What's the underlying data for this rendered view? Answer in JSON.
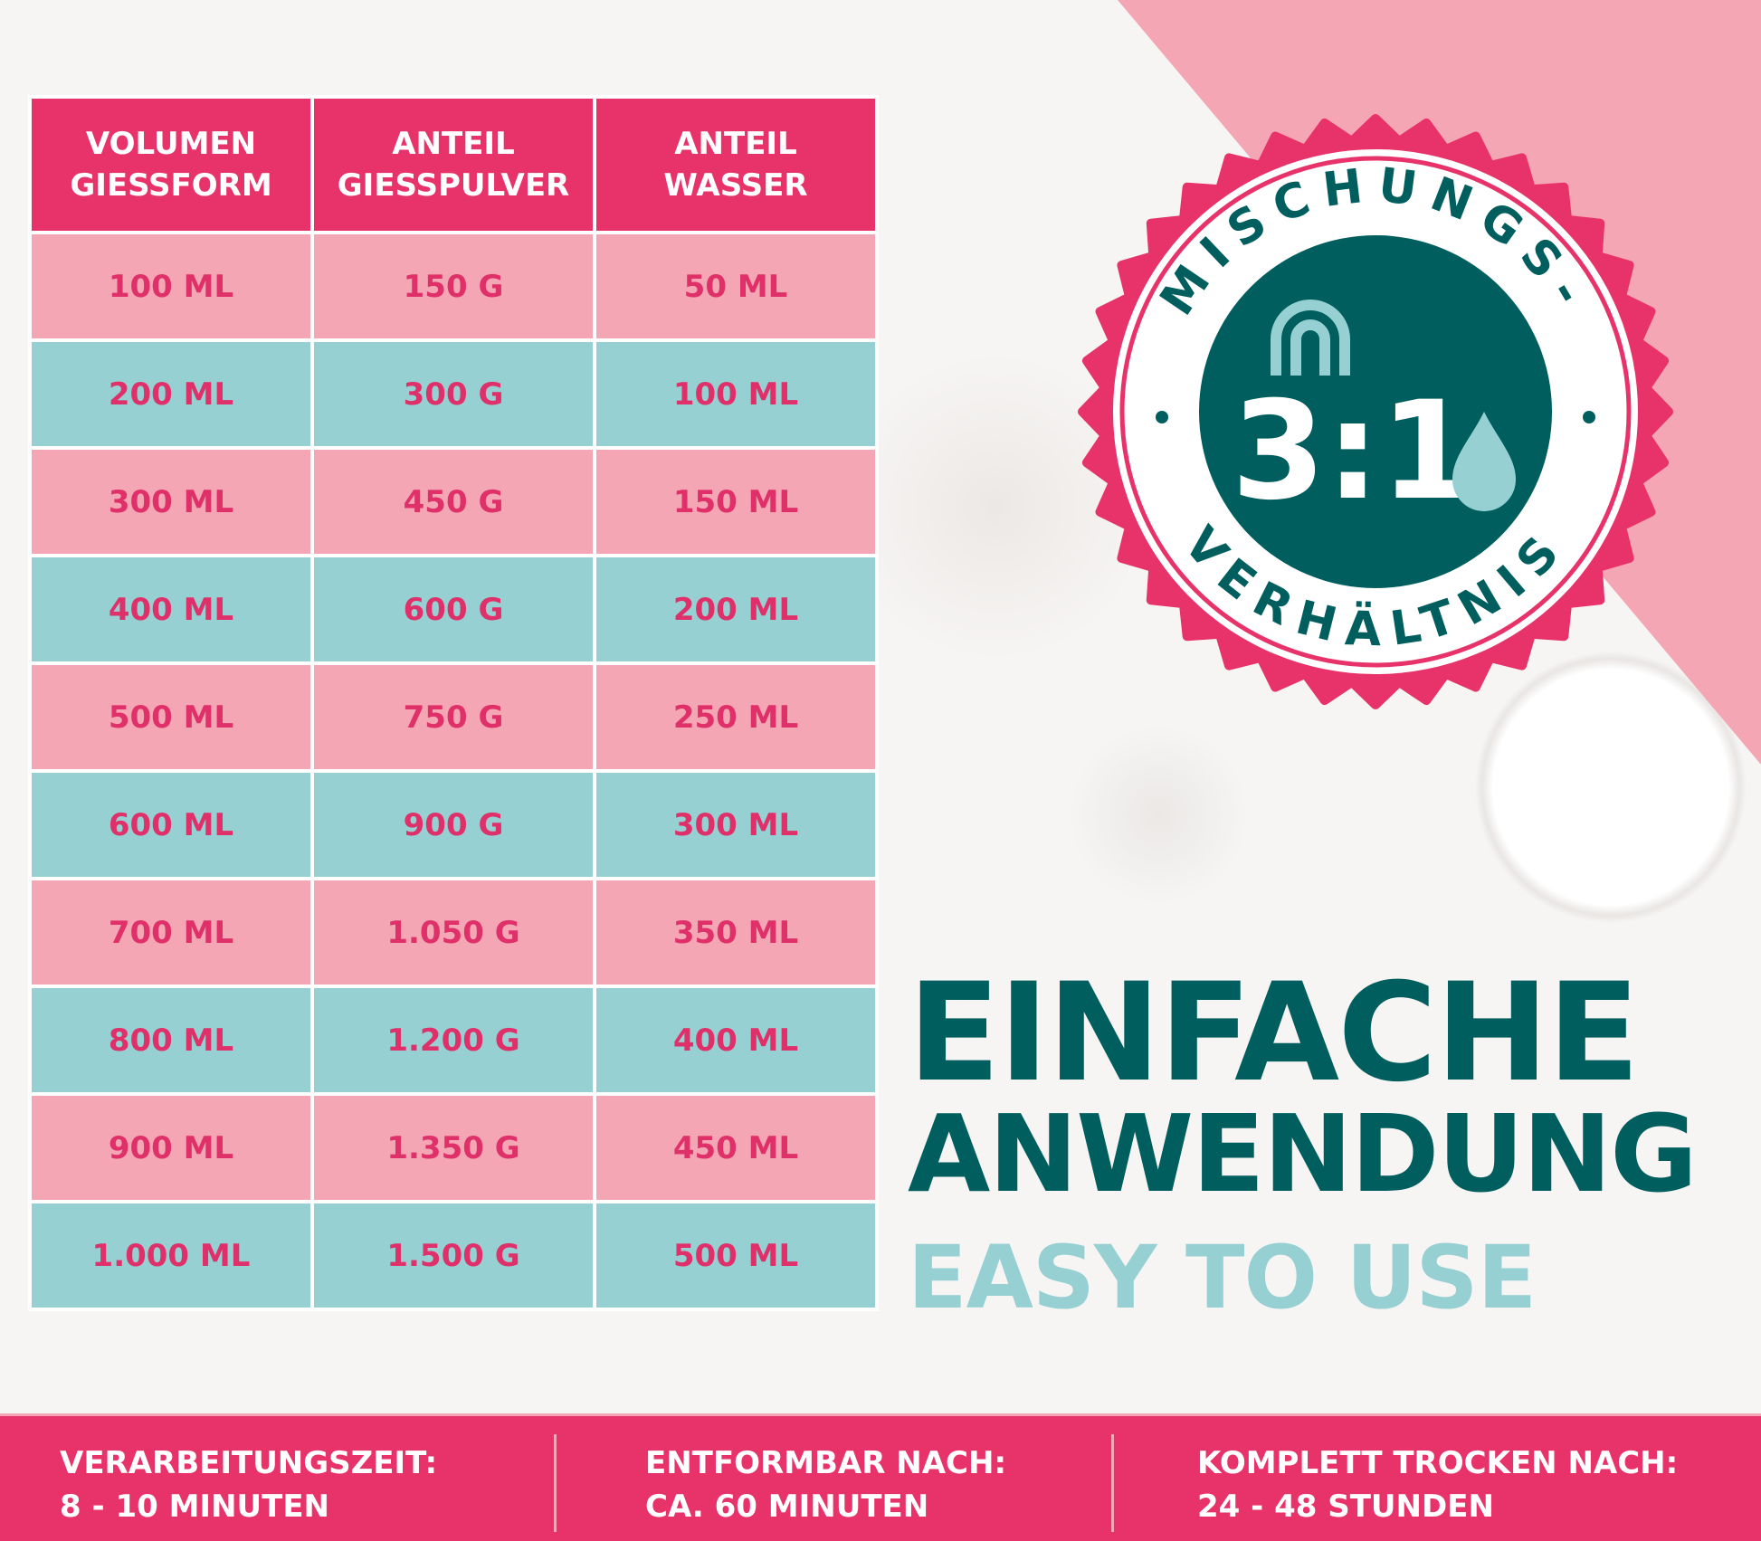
{
  "colors": {
    "pink": "#e8336a",
    "light_pink": "#f4a6b4",
    "teal": "#96d0d2",
    "dark_teal": "#005f5e"
  },
  "table": {
    "headers": [
      [
        "VOLUMEN",
        "GIESSFORM"
      ],
      [
        "ANTEIL",
        "GIESSPULVER"
      ],
      [
        "ANTEIL",
        "WASSER"
      ]
    ],
    "rows": [
      [
        "100 ML",
        "150 G",
        "50 ML"
      ],
      [
        "200 ML",
        "300 G",
        "100 ML"
      ],
      [
        "300 ML",
        "450 G",
        "150 ML"
      ],
      [
        "400 ML",
        "600 G",
        "200 ML"
      ],
      [
        "500 ML",
        "750 G",
        "250 ML"
      ],
      [
        "600 ML",
        "900 G",
        "300 ML"
      ],
      [
        "700 ML",
        "1.050 G",
        "350 ML"
      ],
      [
        "800 ML",
        "1.200 G",
        "400 ML"
      ],
      [
        "900 ML",
        "1.350 G",
        "450 ML"
      ],
      [
        "1.000 ML",
        "1.500 G",
        "500 ML"
      ]
    ]
  },
  "badge": {
    "top_text": "MISCHUNGS-",
    "bottom_text": "VERHÄLTNIS",
    "ratio": "3:1",
    "icons": [
      "arch-logo-icon",
      "water-drop-icon"
    ]
  },
  "headline": {
    "line1": "EINFACHE",
    "line2": "ANWENDUNG",
    "line3": "EASY TO USE"
  },
  "footer": [
    {
      "label": "VERARBEITUNGSZEIT:",
      "value": "8 - 10 MINUTEN"
    },
    {
      "label": "ENTFORMBAR NACH:",
      "value": "CA. 60 MINUTEN"
    },
    {
      "label": "KOMPLETT TROCKEN NACH:",
      "value": "24 - 48 STUNDEN"
    }
  ]
}
